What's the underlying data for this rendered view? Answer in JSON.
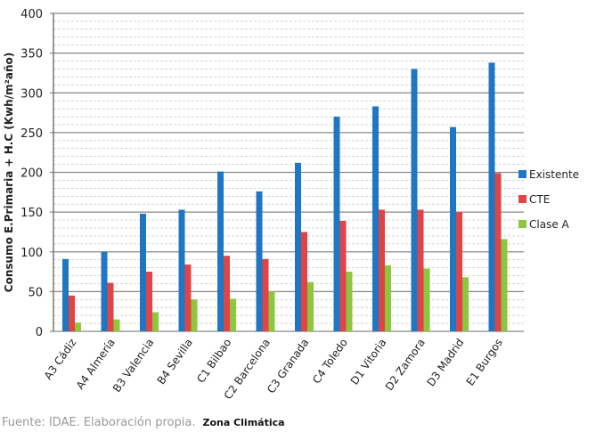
{
  "chart_data": {
    "type": "bar",
    "title": "",
    "ylabel": "Consumo E.Primaria + H.C (Kwh/m²año)",
    "xlabel": "Zona Climática",
    "ylim": [
      0,
      400
    ],
    "yticks": [
      0,
      50,
      100,
      150,
      200,
      250,
      300,
      350,
      400
    ],
    "grid": true,
    "legend_position": "right",
    "categories": [
      "A3 Cádiz",
      "A4 Almería",
      "B3 Valencia",
      "B4 Sevilla",
      "C1 Bilbao",
      "C2 Barcelona",
      "C3 Granada",
      "C4 Toledo",
      "D1 Vitoria",
      "D2 Zamora",
      "D3 Madrid",
      "E1 Burgos"
    ],
    "series": [
      {
        "name": "Existente",
        "color": "#1f77c4",
        "values": [
          91,
          100,
          148,
          153,
          201,
          176,
          212,
          270,
          283,
          330,
          257,
          338
        ]
      },
      {
        "name": "CTE",
        "color": "#e04444",
        "values": [
          45,
          61,
          75,
          84,
          95,
          91,
          125,
          139,
          153,
          153,
          150,
          199
        ]
      },
      {
        "name": "Clase A",
        "color": "#8dc63f",
        "values": [
          11,
          15,
          24,
          40,
          41,
          50,
          62,
          75,
          83,
          79,
          68,
          116
        ]
      }
    ]
  },
  "footer": {
    "source": "Fuente: IDAE. Elaboración propia."
  }
}
